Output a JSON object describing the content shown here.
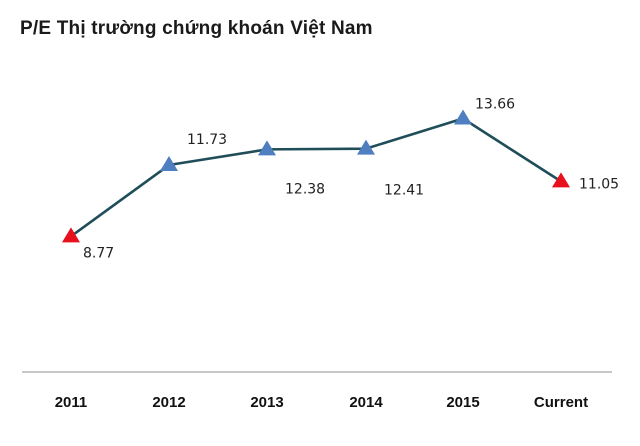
{
  "colors": {
    "line": "#1f4e5a",
    "marker_normal": "#4f7fc0",
    "marker_highlight": "#e8101c",
    "axis": "#a6a6a6",
    "text": "#1a1a1a"
  },
  "chart_data": {
    "type": "line",
    "title": "P/E Thị trường chứng khoán Việt Nam",
    "xlabel": "",
    "ylabel": "",
    "categories": [
      "2011",
      "2012",
      "2013",
      "2014",
      "2015",
      "Current"
    ],
    "series": [
      {
        "values": [
          8.77,
          11.73,
          12.38,
          12.41,
          13.66,
          11.05
        ],
        "data_labels": [
          "8.77",
          "11.73",
          "12.38",
          "12.41",
          "13.66",
          "11.05"
        ],
        "highlighted": [
          true,
          false,
          false,
          false,
          false,
          true
        ]
      }
    ],
    "ylim": [
      0,
      18
    ],
    "grid": false,
    "y_axis_visible": false,
    "legend": "none",
    "marker": "triangle"
  }
}
